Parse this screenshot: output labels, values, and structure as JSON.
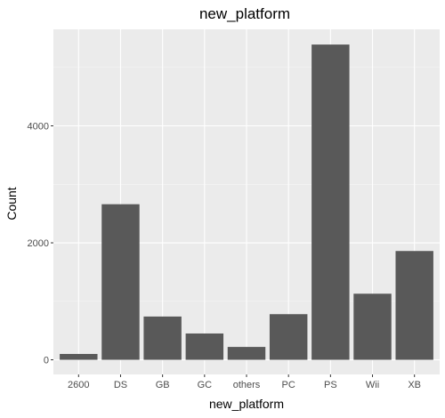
{
  "chart_data": {
    "type": "bar",
    "title": "new_platform",
    "xlabel": "new_platform",
    "ylabel": "Count",
    "categories": [
      "2600",
      "DS",
      "GB",
      "GC",
      "others",
      "PC",
      "PS",
      "Wii",
      "XB"
    ],
    "values": [
      100,
      2660,
      740,
      450,
      220,
      780,
      5390,
      1130,
      1860
    ],
    "ylim": [
      -250,
      5650
    ],
    "yticks": [
      0,
      2000,
      4000
    ],
    "grid": true,
    "legend": "none",
    "colors": {
      "bar": "#595959",
      "panel": "#ebebeb",
      "grid_major": "#ffffff",
      "grid_minor": "#f5f5f5",
      "tick": "#333333"
    }
  }
}
